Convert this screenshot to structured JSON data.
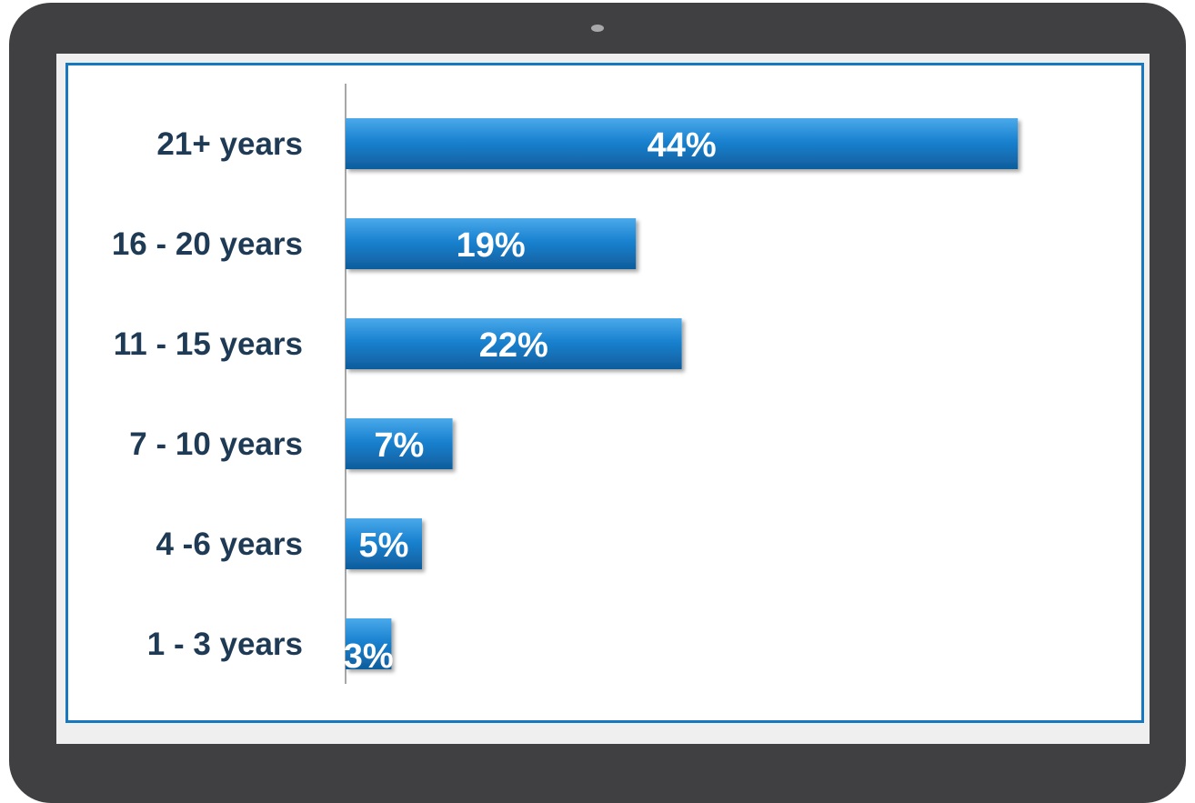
{
  "chart_data": {
    "type": "bar",
    "orientation": "horizontal",
    "categories": [
      "21+ years",
      "16 - 20 years",
      "11 - 15 years",
      "7 - 10 years",
      "4 -6 years",
      "1 - 3 years"
    ],
    "values": [
      44,
      19,
      22,
      7,
      5,
      3
    ],
    "value_labels": [
      "44%",
      "19%",
      "22%",
      "7%",
      "5%",
      "3%"
    ],
    "unit": "%",
    "xlim": [
      0,
      60
    ],
    "grid": false,
    "legend": "none"
  },
  "colors": {
    "bar": "#1a82d0",
    "bar_light": "#3fa2e6",
    "bar_dark": "#0f5d9c",
    "label_text": "#1e3a55",
    "device_frame": "#404042",
    "screen_border": "#1678bf"
  }
}
